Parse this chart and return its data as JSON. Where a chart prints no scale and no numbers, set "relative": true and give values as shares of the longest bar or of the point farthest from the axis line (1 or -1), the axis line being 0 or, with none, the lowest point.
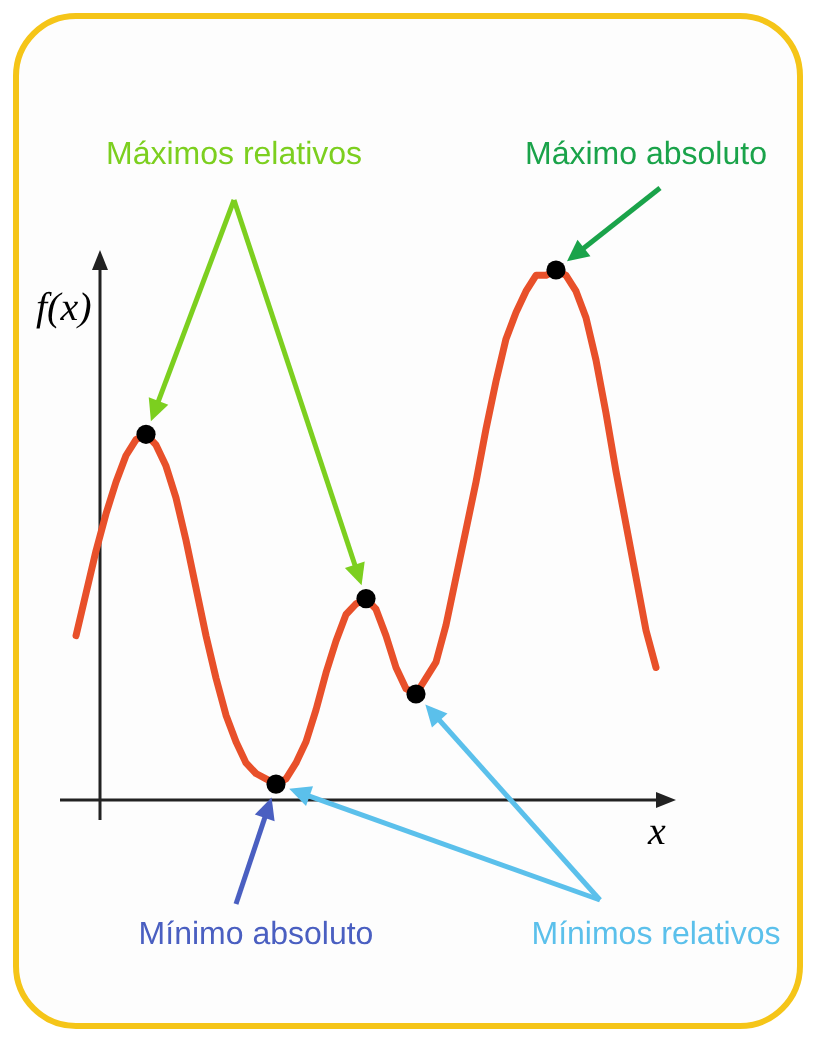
{
  "chart_data": {
    "type": "line",
    "relative": true,
    "xlabel": "x",
    "ylabel": "f(x)",
    "marker": "none",
    "categories": [
      null,
      null,
      null,
      null,
      null,
      null,
      null,
      null,
      null,
      null,
      null,
      null,
      null,
      null,
      null,
      null,
      null,
      null,
      null,
      null,
      null,
      null,
      null,
      null,
      null,
      null,
      null,
      null,
      null,
      null,
      null,
      null,
      null,
      null,
      null,
      null,
      null,
      null,
      null,
      null,
      null,
      null,
      null,
      null,
      null,
      null,
      null,
      null,
      null,
      null,
      null,
      null,
      null,
      null,
      null,
      null,
      null,
      null,
      null
    ],
    "series": [
      {
        "color": "#e8502a",
        "values": [
          0.31,
          0.39,
          0.47,
          0.54,
          0.6,
          0.65,
          0.68,
          0.69,
          0.67,
          0.63,
          0.57,
          0.49,
          0.4,
          0.31,
          0.23,
          0.16,
          0.11,
          0.07,
          0.05,
          0.04,
          0.03,
          0.04,
          0.07,
          0.11,
          0.17,
          0.24,
          0.3,
          0.35,
          0.37,
          0.38,
          0.36,
          0.31,
          0.25,
          0.21,
          0.2,
          0.23,
          0.26,
          0.33,
          0.42,
          0.51,
          0.6,
          0.7,
          0.79,
          0.87,
          0.92,
          0.96,
          0.99,
          0.99,
          1,
          0.99,
          0.96,
          0.91,
          0.83,
          0.73,
          0.62,
          0.52,
          0.42,
          0.32,
          0.25
        ]
      }
    ],
    "annotations": [
      "Máximos relativos",
      "Máximo absoluto",
      "Mínimo absoluto",
      "Mínimos relativos"
    ]
  }
}
